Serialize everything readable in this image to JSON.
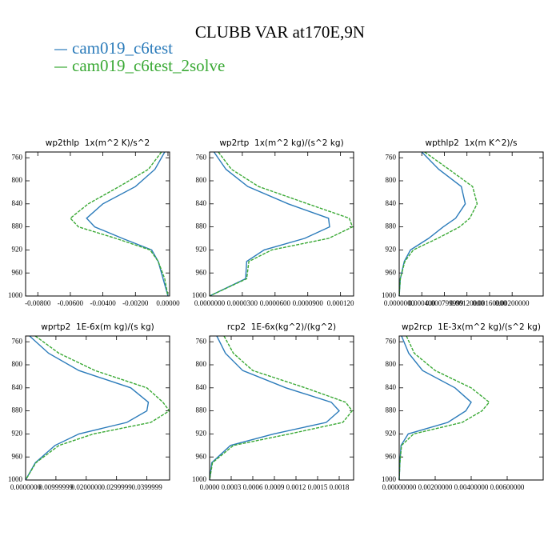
{
  "title": "CLUBB VAR at170E,9N",
  "legend": [
    {
      "name": "cam019_c6test",
      "color": "#2b7bba"
    },
    {
      "name": "cam019_c6test_2solve",
      "color": "#3aa935"
    }
  ],
  "chart_data": [
    {
      "type": "line",
      "title": "wp2thlp  1x(m^2 K)/s^2",
      "y": [
        750,
        780,
        810,
        840,
        865,
        880,
        900,
        920,
        940,
        970,
        1000
      ],
      "ylim": [
        750,
        1000
      ],
      "invert_y": true,
      "yticks": [
        760,
        800,
        840,
        880,
        920,
        960,
        1000
      ],
      "xlim": [
        -0.00875,
        0.0001
      ],
      "xticks": [
        {
          "value": -0.008,
          "label": "-0.00800"
        },
        {
          "value": -0.006,
          "label": "-0.00600"
        },
        {
          "value": -0.004,
          "label": "-0.00400"
        },
        {
          "value": -0.002,
          "label": "-0.00200"
        },
        {
          "value": 0,
          "label": "0.00000"
        }
      ],
      "series": [
        {
          "color": "#2b7bba",
          "dashed": false,
          "values": [
            -0.0002,
            -0.0008,
            -0.002,
            -0.004,
            -0.005,
            -0.0045,
            -0.0028,
            -0.001,
            -0.0006,
            -0.0003,
            0
          ]
        },
        {
          "color": "#3aa935",
          "dashed": true,
          "values": [
            -0.0004,
            -0.0012,
            -0.003,
            -0.0049,
            -0.006,
            -0.0055,
            -0.0032,
            -0.0011,
            -0.0006,
            -0.0002,
            0
          ]
        }
      ]
    },
    {
      "type": "line",
      "title": "wp2rtp  1x(m^2 kg)/(s^2 kg)",
      "y": [
        750,
        780,
        810,
        840,
        865,
        880,
        900,
        920,
        940,
        970,
        1000
      ],
      "ylim": [
        750,
        1000
      ],
      "invert_y": true,
      "yticks": [
        760,
        800,
        840,
        880,
        920,
        960,
        1000
      ],
      "xlim": [
        0,
        0.000132
      ],
      "xticks": [
        {
          "value": 0,
          "label": "0.0000000"
        },
        {
          "value": 3e-05,
          "label": "0.0000300"
        },
        {
          "value": 6e-05,
          "label": "0.0000600"
        },
        {
          "value": 9e-05,
          "label": "0.0000900"
        },
        {
          "value": 0.00012,
          "label": "0.000120"
        }
      ],
      "series": [
        {
          "color": "#2b7bba",
          "dashed": false,
          "values": [
            4e-06,
            1.5e-05,
            3.5e-05,
            7.2e-05,
            0.000109,
            0.00011,
            8.7e-05,
            5e-05,
            3.4e-05,
            3.3e-05,
            0
          ]
        },
        {
          "color": "#3aa935",
          "dashed": true,
          "values": [
            8e-06,
            2e-05,
            4.5e-05,
            9e-05,
            0.000128,
            0.000131,
            0.000109,
            5.7e-05,
            3.6e-05,
            3.4e-05,
            0
          ]
        }
      ]
    },
    {
      "type": "line",
      "title": "wpthlp2  1x(m K^2)/s",
      "y": [
        750,
        780,
        810,
        840,
        865,
        880,
        900,
        920,
        940,
        970,
        1000
      ],
      "ylim": [
        750,
        1000
      ],
      "invert_y": true,
      "yticks": [
        760,
        800,
        840,
        880,
        920,
        960,
        1000
      ],
      "xlim": [
        0,
        0.00255
      ],
      "xticks": [
        {
          "value": 0,
          "label": "0.0000000"
        },
        {
          "value": 0.0004,
          "label": "0.000400"
        },
        {
          "value": 0.0008,
          "label": "0.000799999"
        },
        {
          "value": 0.0012,
          "label": "0.00120000"
        },
        {
          "value": 0.0016,
          "label": "0.00160000"
        },
        {
          "value": 0.002,
          "label": "0.00200000"
        }
      ],
      "series": [
        {
          "color": "#2b7bba",
          "dashed": false,
          "values": [
            0.0004,
            0.0007,
            0.0011,
            0.00117,
            0.001,
            0.00078,
            0.00052,
            0.0002,
            9e-05,
            2e-05,
            0
          ]
        },
        {
          "color": "#3aa935",
          "dashed": true,
          "values": [
            0.00045,
            0.00088,
            0.0013,
            0.00138,
            0.00125,
            0.00107,
            0.00068,
            0.00025,
            0.0001,
            2e-05,
            0
          ]
        }
      ]
    },
    {
      "type": "line",
      "title": "wprtp2  1E-6x(m kg)/(s kg)",
      "y": [
        750,
        780,
        810,
        840,
        865,
        880,
        900,
        920,
        940,
        970,
        1000
      ],
      "ylim": [
        750,
        1000
      ],
      "invert_y": true,
      "yticks": [
        760,
        800,
        840,
        880,
        920,
        960,
        1000
      ],
      "xlim": [
        0,
        0.0475
      ],
      "xticks": [
        {
          "value": 0,
          "label": "0.0000000"
        },
        {
          "value": 0.01,
          "label": "0.00999999"
        },
        {
          "value": 0.02,
          "label": "0.0200000"
        },
        {
          "value": 0.03,
          "label": "0.0299999"
        },
        {
          "value": 0.04,
          "label": "0.0399999"
        }
      ],
      "series": [
        {
          "color": "#2b7bba",
          "dashed": false,
          "values": [
            0.0013,
            0.0076,
            0.0176,
            0.0347,
            0.0405,
            0.04,
            0.0334,
            0.0176,
            0.0097,
            0.0032,
            0
          ]
        },
        {
          "color": "#3aa935",
          "dashed": true,
          "values": [
            0.0032,
            0.011,
            0.0229,
            0.04,
            0.0453,
            0.0474,
            0.0413,
            0.0224,
            0.011,
            0.0034,
            0
          ]
        }
      ]
    },
    {
      "type": "line",
      "title": "rcp2  1E-6x(kg^2)/(kg^2)",
      "y": [
        750,
        780,
        810,
        840,
        865,
        880,
        900,
        920,
        940,
        970,
        1000
      ],
      "ylim": [
        750,
        1000
      ],
      "invert_y": true,
      "yticks": [
        760,
        800,
        840,
        880,
        920,
        960,
        1000
      ],
      "xlim": [
        0,
        0.002
      ],
      "xticks": [
        {
          "value": 0,
          "label": "0.0000"
        },
        {
          "value": 0.0003,
          "label": "0.0003"
        },
        {
          "value": 0.0006,
          "label": "0.0006"
        },
        {
          "value": 0.0009,
          "label": "0.0009"
        },
        {
          "value": 0.0012,
          "label": "0.0012"
        },
        {
          "value": 0.0015,
          "label": "0.0015"
        },
        {
          "value": 0.0018,
          "label": "0.0018"
        }
      ],
      "series": [
        {
          "color": "#2b7bba",
          "dashed": false,
          "values": [
            0.0001,
            0.00022,
            0.00046,
            0.00106,
            0.00169,
            0.0018,
            0.00162,
            0.00089,
            0.00029,
            3e-05,
            0
          ]
        },
        {
          "color": "#3aa935",
          "dashed": true,
          "values": [
            0.0002,
            0.00033,
            0.0006,
            0.00133,
            0.00189,
            0.00198,
            0.00185,
            0.00111,
            0.00033,
            4e-05,
            0
          ]
        }
      ]
    },
    {
      "type": "line",
      "title": "wp2rcp  1E-3x(m^2 kg)/(s^2 kg)",
      "y": [
        750,
        780,
        810,
        840,
        865,
        880,
        900,
        920,
        940,
        970,
        1000
      ],
      "ylim": [
        750,
        1000
      ],
      "invert_y": true,
      "yticks": [
        760,
        800,
        840,
        880,
        920,
        960,
        1000
      ],
      "xlim": [
        0,
        0.008
      ],
      "xticks": [
        {
          "value": 0,
          "label": "0.00000000"
        },
        {
          "value": 0.002,
          "label": "0.00200000"
        },
        {
          "value": 0.004,
          "label": "0.00400000"
        },
        {
          "value": 0.006,
          "label": "0.00600000"
        }
      ],
      "series": [
        {
          "color": "#2b7bba",
          "dashed": false,
          "values": [
            0.00013,
            0.00053,
            0.0013,
            0.0031,
            0.004,
            0.0037,
            0.0027,
            0.0005,
            0.0001,
            4e-05,
            0
          ]
        },
        {
          "color": "#3aa935",
          "dashed": true,
          "values": [
            0.0004,
            0.00084,
            0.002,
            0.004,
            0.005,
            0.0046,
            0.0035,
            0.0008,
            0.00013,
            4e-05,
            0
          ]
        }
      ]
    }
  ]
}
